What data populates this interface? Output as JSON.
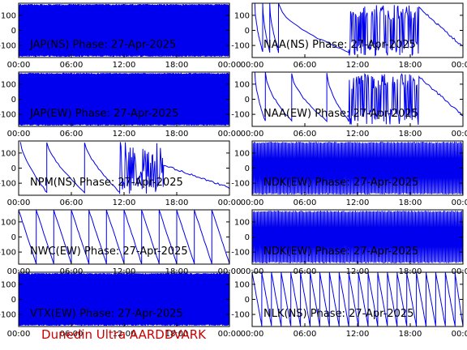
{
  "footer_text": "Dunedin Ultra AARDDVARK",
  "colors": {
    "trace": "#0000ee",
    "axes": "#000000",
    "footer": "#cc0000"
  },
  "chart_data": [
    {
      "type": "line",
      "title": "JAP(NS) Phase: 27-Apr-2025",
      "x_ticks": [
        "00:00",
        "06:00",
        "12:00",
        "18:00",
        "00:00"
      ],
      "y_ticks": [
        "100",
        "0",
        "-100"
      ],
      "ylim": [
        -180,
        180
      ],
      "xlim": [
        0,
        24
      ],
      "pattern": "noise",
      "noise_start": 0,
      "noise_end": 24,
      "dense": true
    },
    {
      "type": "line",
      "title": "NAA(NS) Phase: 27-Apr-2025",
      "x_ticks": [
        "00:00",
        "06:00",
        "12:00",
        "18:00",
        "00:00"
      ],
      "y_ticks": [
        "100",
        "0",
        "-100"
      ],
      "ylim": [
        -180,
        180
      ],
      "xlim": [
        0,
        24
      ],
      "pattern": "mixed_a"
    },
    {
      "type": "line",
      "title": "JAP(EW) Phase: 27-Apr-2025",
      "x_ticks": [
        "00:00",
        "06:00",
        "12:00",
        "18:00",
        "00:00"
      ],
      "y_ticks": [
        "100",
        "0",
        "-100"
      ],
      "ylim": [
        -180,
        180
      ],
      "xlim": [
        0,
        24
      ],
      "pattern": "noise",
      "noise_start": 0,
      "noise_end": 24,
      "dense": true
    },
    {
      "type": "line",
      "title": "NAA(EW) Phase: 27-Apr-2025",
      "x_ticks": [
        "00:00",
        "06:00",
        "12:00",
        "18:00",
        "00:00"
      ],
      "y_ticks": [
        "100",
        "0",
        "-100"
      ],
      "ylim": [
        -180,
        180
      ],
      "xlim": [
        0,
        24
      ],
      "pattern": "mixed_b"
    },
    {
      "type": "line",
      "title": "NPM(NS) Phase: 27-Apr-2025",
      "x_ticks": [
        "00:00",
        "06:00",
        "12:00",
        "18:00",
        "00:00"
      ],
      "y_ticks": [
        "100",
        "0",
        "-100"
      ],
      "ylim": [
        -180,
        180
      ],
      "xlim": [
        0,
        24
      ],
      "pattern": "npm"
    },
    {
      "type": "line",
      "title": "NDK(EW) Phase: 27-Apr-2025",
      "x_ticks": [
        "00:00",
        "06:00",
        "12:00",
        "18:00",
        "00:00"
      ],
      "y_ticks": [
        "100",
        "0",
        "-100"
      ],
      "ylim": [
        -180,
        180
      ],
      "xlim": [
        0,
        24
      ],
      "pattern": "noise",
      "noise_start": 0,
      "noise_end": 24,
      "dense": false
    },
    {
      "type": "line",
      "title": "NWC(EW) Phase: 27-Apr-2025",
      "x_ticks": [
        "00:00",
        "06:00",
        "12:00",
        "18:00",
        "00:00"
      ],
      "y_ticks": [
        "100",
        "0",
        "-100"
      ],
      "ylim": [
        -180,
        180
      ],
      "xlim": [
        0,
        24
      ],
      "pattern": "sawtooth",
      "period": 2.0,
      "slope": "down"
    },
    {
      "type": "line",
      "title": "NDK(EW) Phase: 27-Apr-2025",
      "x_ticks": [
        "00:00",
        "06:00",
        "12:00",
        "18:00",
        "00:00"
      ],
      "y_ticks": [
        "100",
        "0",
        "-100"
      ],
      "ylim": [
        -180,
        180
      ],
      "xlim": [
        0,
        24
      ],
      "pattern": "noise",
      "noise_start": 0,
      "noise_end": 24,
      "dense": false
    },
    {
      "type": "line",
      "title": "VTX(EW) Phase: 27-Apr-2025",
      "x_ticks": [
        "00:00",
        "06:00",
        "12:00",
        "18:00",
        "00:00"
      ],
      "y_ticks": [
        "100",
        "0",
        "-100"
      ],
      "ylim": [
        -180,
        180
      ],
      "xlim": [
        0,
        24
      ],
      "pattern": "noise",
      "noise_start": 0,
      "noise_end": 24,
      "dense": true
    },
    {
      "type": "line",
      "title": "NLK(NS) Phase: 27-Apr-2025",
      "x_ticks": [
        "00:00",
        "06:00",
        "12:00",
        "18:00",
        "00:00"
      ],
      "y_ticks": [
        "100",
        "0",
        "-100"
      ],
      "ylim": [
        -180,
        180
      ],
      "xlim": [
        0,
        24
      ],
      "pattern": "sawtooth",
      "period": 1.1,
      "slope": "down"
    }
  ]
}
